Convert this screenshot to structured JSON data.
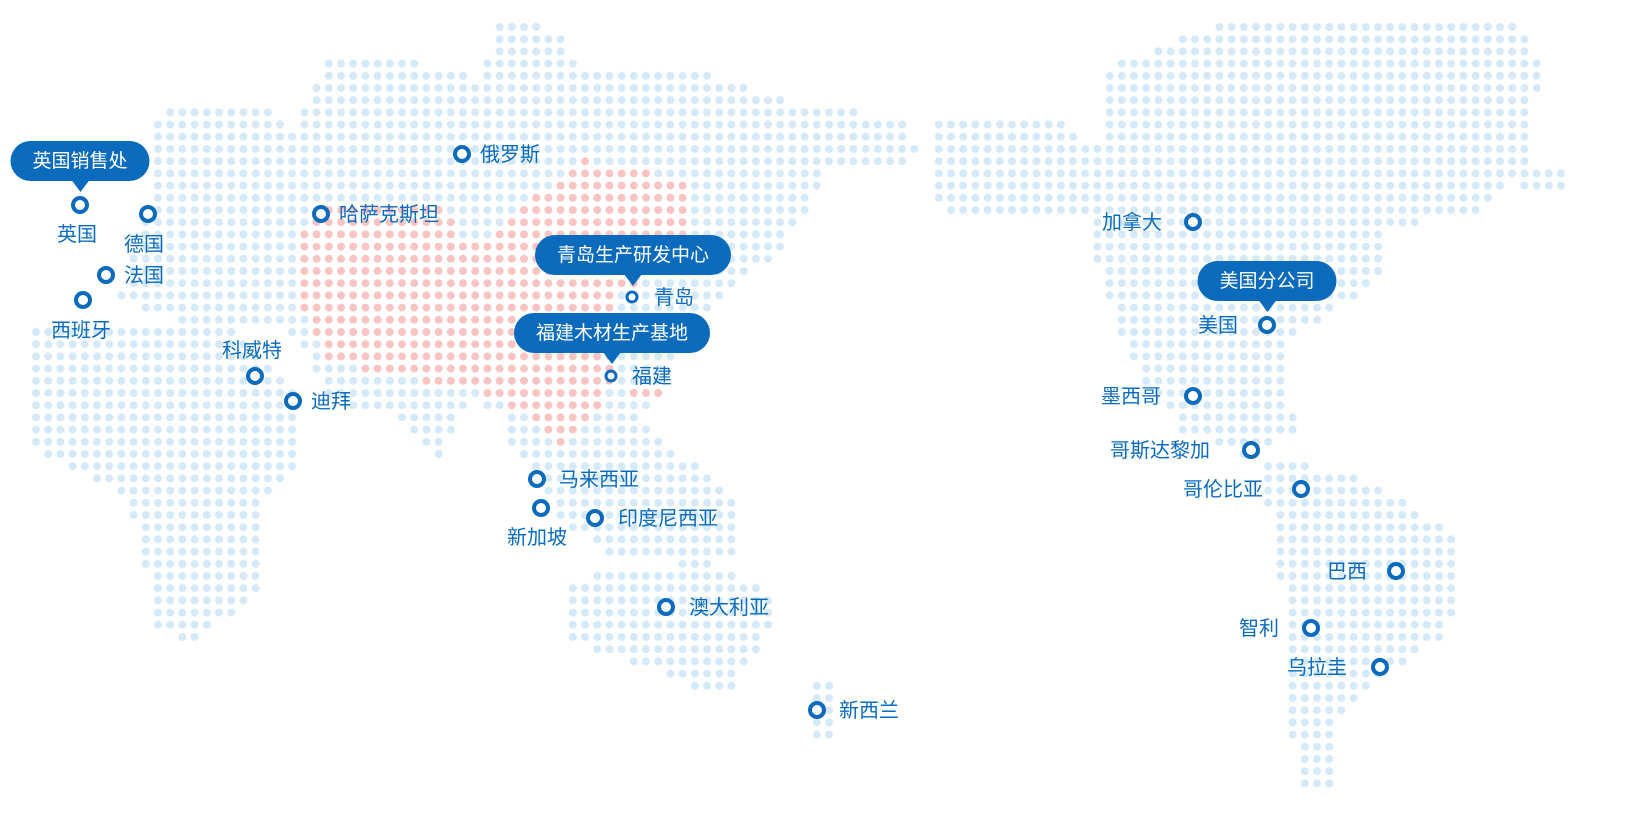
{
  "colors": {
    "marker": "#0a6bbd",
    "land_dot": "#d5e9f8",
    "china_dot": "#f9c4c4"
  },
  "callouts": [
    {
      "id": "uk",
      "label": "英国销售处"
    },
    {
      "id": "qingdao",
      "label": "青岛生产研发中心"
    },
    {
      "id": "fujian",
      "label": "福建木材生产基地"
    },
    {
      "id": "usa",
      "label": "美国分公司"
    }
  ],
  "locations": [
    {
      "id": "uk",
      "label": "英国"
    },
    {
      "id": "germany",
      "label": "德国"
    },
    {
      "id": "france",
      "label": "法国"
    },
    {
      "id": "spain",
      "label": "西班牙"
    },
    {
      "id": "kazakhstan",
      "label": "哈萨克斯坦"
    },
    {
      "id": "russia",
      "label": "俄罗斯"
    },
    {
      "id": "kuwait",
      "label": "科威特"
    },
    {
      "id": "dubai",
      "label": "迪拜"
    },
    {
      "id": "qingdao",
      "label": "青岛"
    },
    {
      "id": "fujian",
      "label": "福建"
    },
    {
      "id": "malaysia",
      "label": "马来西亚"
    },
    {
      "id": "singapore",
      "label": "新加坡"
    },
    {
      "id": "indonesia",
      "label": "印度尼西亚"
    },
    {
      "id": "australia",
      "label": "澳大利亚"
    },
    {
      "id": "newzealand",
      "label": "新西兰"
    },
    {
      "id": "canada",
      "label": "加拿大"
    },
    {
      "id": "usa",
      "label": "美国"
    },
    {
      "id": "mexico",
      "label": "墨西哥"
    },
    {
      "id": "costarica",
      "label": "哥斯达黎加"
    },
    {
      "id": "colombia",
      "label": "哥伦比亚"
    },
    {
      "id": "brazil",
      "label": "巴西"
    },
    {
      "id": "chile",
      "label": "智利"
    },
    {
      "id": "uruguay",
      "label": "乌拉圭"
    }
  ]
}
